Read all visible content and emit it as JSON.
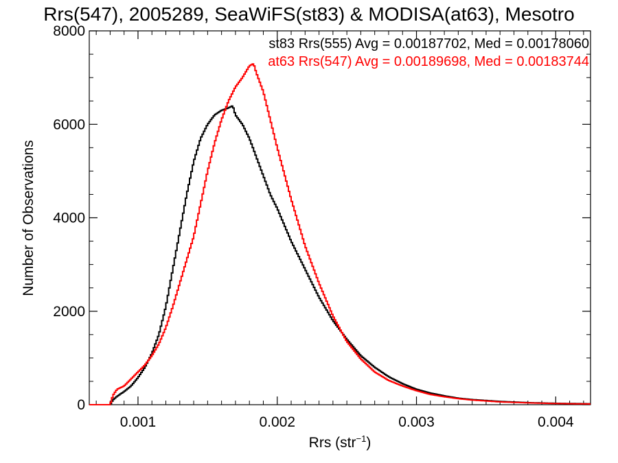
{
  "chart_data": {
    "type": "line",
    "step": true,
    "title": "Rrs(547), 2005289, SeaWiFS(st83) & MODISA(at63), Mesotro",
    "xlabel": "Rrs (str",
    "xlabel_sup": "−1",
    "xlabel_suffix": ")",
    "ylabel": "Number of Observations",
    "xlim": [
      0.00065,
      0.00425
    ],
    "ylim": [
      0,
      8000
    ],
    "xticks": [
      0.001,
      0.002,
      0.003,
      0.004
    ],
    "xtick_labels": [
      "0.001",
      "0.002",
      "0.003",
      "0.004"
    ],
    "yticks": [
      0,
      2000,
      4000,
      6000,
      8000
    ],
    "ytick_labels": [
      "0",
      "2000",
      "4000",
      "6000",
      "8000"
    ],
    "legend_position": "top-right",
    "series": [
      {
        "legend": "st83 Rrs(555) Avg = 0.00187702, Med = 0.00178060",
        "color": "#000000",
        "x": [
          0.00065,
          0.0008,
          0.00082,
          0.00085,
          0.0009,
          0.00095,
          0.001,
          0.00105,
          0.0011,
          0.00115,
          0.0012,
          0.00125,
          0.0013,
          0.00135,
          0.0014,
          0.00145,
          0.0015,
          0.00155,
          0.0016,
          0.00165,
          0.00168,
          0.0017,
          0.00175,
          0.0018,
          0.00185,
          0.0019,
          0.00195,
          0.002,
          0.0021,
          0.0022,
          0.0023,
          0.0024,
          0.0025,
          0.0026,
          0.0027,
          0.0028,
          0.0029,
          0.003,
          0.0031,
          0.0032,
          0.0033,
          0.0034,
          0.0036,
          0.0038,
          0.004,
          0.00425
        ],
        "y": [
          0,
          0,
          100,
          180,
          280,
          400,
          580,
          800,
          1100,
          1500,
          2100,
          2900,
          3700,
          4500,
          5200,
          5700,
          6000,
          6200,
          6300,
          6350,
          6400,
          6200,
          6000,
          5700,
          5300,
          4900,
          4500,
          4200,
          3500,
          2900,
          2300,
          1800,
          1400,
          1050,
          800,
          600,
          450,
          330,
          250,
          190,
          140,
          110,
          70,
          45,
          30,
          20
        ]
      },
      {
        "legend": "at63 Rrs(547) Avg = 0.00189698, Med = 0.00183744",
        "color": "#ff0000",
        "x": [
          0.00065,
          0.0008,
          0.00082,
          0.00085,
          0.0009,
          0.00095,
          0.001,
          0.00105,
          0.0011,
          0.00115,
          0.0012,
          0.00125,
          0.0013,
          0.00135,
          0.0014,
          0.00145,
          0.0015,
          0.00155,
          0.0016,
          0.00165,
          0.0017,
          0.00175,
          0.0018,
          0.00183,
          0.00185,
          0.0019,
          0.00195,
          0.002,
          0.0021,
          0.0022,
          0.0023,
          0.0024,
          0.0025,
          0.0026,
          0.0027,
          0.0028,
          0.0029,
          0.003,
          0.0031,
          0.0032,
          0.0033,
          0.0034,
          0.0036,
          0.0038,
          0.004,
          0.00425
        ],
        "y": [
          0,
          0,
          200,
          330,
          400,
          550,
          700,
          850,
          1050,
          1300,
          1650,
          2100,
          2600,
          3100,
          3600,
          4300,
          5000,
          5600,
          6100,
          6500,
          6800,
          7000,
          7250,
          7300,
          7100,
          6700,
          6100,
          5500,
          4400,
          3400,
          2600,
          1900,
          1350,
          980,
          700,
          520,
          400,
          300,
          220,
          170,
          130,
          100,
          60,
          40,
          25,
          15
        ]
      }
    ]
  }
}
